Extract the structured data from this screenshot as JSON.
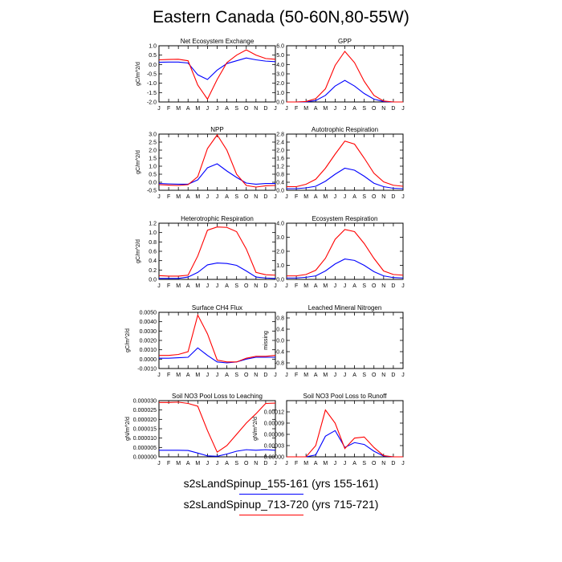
{
  "title": "Eastern Canada (50-60N,80-55W)",
  "colors": {
    "series_a": "#0000ff",
    "series_b": "#ff0000"
  },
  "legend": [
    {
      "label": "s2sLandSpinup_155-161 (yrs 155-161)",
      "color": "#0000ff"
    },
    {
      "label": "s2sLandSpinup_713-720 (yrs 715-721)",
      "color": "#ff0000"
    }
  ],
  "chart_data": [
    {
      "type": "line",
      "title": "Net Ecosystem Exchange",
      "ylabel": "gC/m^2/d",
      "ylim": [
        -2.0,
        1.0
      ],
      "yticks": [
        "-2.0",
        "-1.5",
        "-1.0",
        "-0.5",
        "0.0",
        "0.5",
        "1.0"
      ],
      "categories": [
        "J",
        "F",
        "M",
        "A",
        "M",
        "J",
        "J",
        "A",
        "S",
        "O",
        "N",
        "D",
        "J"
      ],
      "series": [
        {
          "values": [
            0.12,
            0.13,
            0.13,
            0.08,
            -0.55,
            -0.8,
            -0.3,
            0.05,
            0.2,
            0.35,
            0.25,
            0.18,
            0.15
          ]
        },
        {
          "values": [
            0.25,
            0.27,
            0.28,
            0.2,
            -1.1,
            -1.85,
            -0.8,
            0.1,
            0.5,
            0.78,
            0.5,
            0.32,
            0.28
          ]
        }
      ]
    },
    {
      "type": "line",
      "title": "GPP",
      "ylabel": "",
      "ylim": [
        0.0,
        6.0
      ],
      "yticks": [
        "0.0",
        "1.0",
        "2.0",
        "3.0",
        "4.0",
        "5.0",
        "6.0"
      ],
      "categories": [
        "J",
        "F",
        "M",
        "A",
        "M",
        "J",
        "J",
        "A",
        "S",
        "O",
        "N",
        "D",
        "J"
      ],
      "series": [
        {
          "values": [
            0.0,
            0.0,
            0.02,
            0.15,
            0.7,
            1.7,
            2.3,
            1.7,
            0.9,
            0.3,
            0.05,
            0.0,
            0.0
          ]
        },
        {
          "values": [
            0.0,
            0.0,
            0.05,
            0.35,
            1.4,
            3.9,
            5.4,
            4.2,
            2.2,
            0.7,
            0.1,
            0.0,
            0.0
          ]
        }
      ]
    },
    {
      "type": "line",
      "title": "NPP",
      "ylabel": "gC/m^2/d",
      "ylim": [
        -0.5,
        3.0
      ],
      "yticks": [
        "-0.5",
        "0.0",
        "0.5",
        "1.0",
        "1.5",
        "2.0",
        "2.5",
        "3.0"
      ],
      "categories": [
        "J",
        "F",
        "M",
        "A",
        "M",
        "J",
        "J",
        "A",
        "S",
        "O",
        "N",
        "D",
        "J"
      ],
      "series": [
        {
          "values": [
            -0.08,
            -0.1,
            -0.12,
            -0.12,
            0.15,
            0.9,
            1.15,
            0.7,
            0.3,
            -0.05,
            -0.12,
            -0.08,
            -0.08
          ]
        },
        {
          "values": [
            -0.15,
            -0.18,
            -0.2,
            -0.15,
            0.35,
            2.1,
            2.95,
            2.0,
            0.5,
            -0.2,
            -0.3,
            -0.22,
            -0.2
          ]
        }
      ]
    },
    {
      "type": "line",
      "title": "Autotrophic Respiration",
      "ylabel": "",
      "ylim": [
        0.0,
        2.8
      ],
      "yticks": [
        "0.0",
        "0.4",
        "0.8",
        "1.2",
        "1.6",
        "2.0",
        "2.4",
        "2.8"
      ],
      "categories": [
        "J",
        "F",
        "M",
        "A",
        "M",
        "J",
        "J",
        "A",
        "S",
        "O",
        "N",
        "D",
        "J"
      ],
      "series": [
        {
          "values": [
            0.08,
            0.08,
            0.12,
            0.2,
            0.45,
            0.8,
            1.1,
            1.0,
            0.7,
            0.35,
            0.18,
            0.1,
            0.08
          ]
        },
        {
          "values": [
            0.18,
            0.18,
            0.3,
            0.55,
            1.1,
            1.8,
            2.45,
            2.3,
            1.6,
            0.85,
            0.42,
            0.25,
            0.2
          ]
        }
      ]
    },
    {
      "type": "line",
      "title": "Heterotrophic Respiration",
      "ylabel": "gC/m^2/d",
      "ylim": [
        0.0,
        1.2
      ],
      "yticks": [
        "0.0",
        "0.2",
        "0.4",
        "0.6",
        "0.8",
        "1.0",
        "1.2"
      ],
      "categories": [
        "J",
        "F",
        "M",
        "A",
        "M",
        "J",
        "J",
        "A",
        "S",
        "O",
        "N",
        "D",
        "J"
      ],
      "series": [
        {
          "values": [
            0.02,
            0.02,
            0.02,
            0.05,
            0.15,
            0.31,
            0.35,
            0.34,
            0.3,
            0.18,
            0.05,
            0.03,
            0.02
          ]
        },
        {
          "values": [
            0.08,
            0.07,
            0.07,
            0.09,
            0.5,
            1.05,
            1.12,
            1.11,
            1.02,
            0.65,
            0.15,
            0.1,
            0.09
          ]
        }
      ]
    },
    {
      "type": "line",
      "title": "Ecosystem Respiration",
      "ylabel": "",
      "ylim": [
        0.0,
        4.0
      ],
      "yticks": [
        "0.0",
        "1.0",
        "2.0",
        "3.0",
        "4.0"
      ],
      "categories": [
        "J",
        "F",
        "M",
        "A",
        "M",
        "J",
        "J",
        "A",
        "S",
        "O",
        "N",
        "D",
        "J"
      ],
      "series": [
        {
          "values": [
            0.1,
            0.1,
            0.15,
            0.25,
            0.6,
            1.1,
            1.45,
            1.35,
            1.0,
            0.55,
            0.25,
            0.13,
            0.1
          ]
        },
        {
          "values": [
            0.25,
            0.25,
            0.35,
            0.65,
            1.5,
            2.85,
            3.55,
            3.4,
            2.55,
            1.5,
            0.6,
            0.35,
            0.3
          ]
        }
      ]
    },
    {
      "type": "line",
      "title": "Surface CH4 Flux",
      "ylabel": "gC/m^2/d",
      "ylim": [
        -0.001,
        0.005
      ],
      "yticks": [
        "-0.0010",
        "0.0000",
        "0.0010",
        "0.0020",
        "0.0030",
        "0.0040",
        "0.0050"
      ],
      "categories": [
        "J",
        "F",
        "M",
        "A",
        "M",
        "J",
        "J",
        "A",
        "S",
        "O",
        "N",
        "D",
        "J"
      ],
      "series": [
        {
          "values": [
            0.0001,
            0.0001,
            0.00015,
            0.0002,
            0.0012,
            0.0004,
            -0.0003,
            -0.0004,
            -0.0003,
            0.0,
            0.0002,
            0.0002,
            0.0002
          ]
        },
        {
          "values": [
            0.0004,
            0.0004,
            0.0005,
            0.0008,
            0.0047,
            0.0027,
            -0.0001,
            -0.0003,
            -0.0003,
            0.0001,
            0.0003,
            0.0003,
            0.0004
          ]
        }
      ]
    },
    {
      "type": "line",
      "title": "Leached Mineral Nitrogen",
      "ylabel": "missing",
      "ylim": [
        -1.0,
        1.0
      ],
      "yticks": [
        "-0.8",
        "-0.4",
        "0.0",
        "0.4",
        "0.8"
      ],
      "categories": [
        "J",
        "F",
        "M",
        "A",
        "M",
        "J",
        "J",
        "A",
        "S",
        "O",
        "N",
        "D",
        "J"
      ],
      "series": []
    },
    {
      "type": "line",
      "title": "Soil NO3 Pool Loss to Leaching",
      "ylabel": "gN/m^2/d",
      "ylim": [
        0.0,
        3e-05
      ],
      "yticks": [
        "0.000000",
        "0.000005",
        "0.000010",
        "0.000015",
        "0.000020",
        "0.000025",
        "0.000030"
      ],
      "categories": [
        "J",
        "F",
        "M",
        "A",
        "M",
        "J",
        "J",
        "A",
        "S",
        "O",
        "N",
        "D",
        "J"
      ],
      "series": [
        {
          "values": [
            3.5e-06,
            3.5e-06,
            3.5e-06,
            3.4e-06,
            2e-06,
            5e-07,
            3e-07,
            1.5e-06,
            3e-06,
            3.8e-06,
            3.5e-06,
            3.8e-06,
            3.5e-06
          ]
        },
        {
          "values": [
            2.9e-05,
            2.9e-05,
            2.92e-05,
            2.85e-05,
            2.7e-05,
            1.4e-05,
            2.5e-06,
            6e-06,
            1.2e-05,
            1.8e-05,
            2.3e-05,
            2.85e-05,
            2.87e-05
          ]
        }
      ]
    },
    {
      "type": "line",
      "title": "Soil NO3 Pool Loss to Runoff",
      "ylabel": "gN/m^2/d",
      "ylim": [
        0.0,
        0.00015
      ],
      "yticks": [
        "0.00000",
        "0.00003",
        "0.00006",
        "0.00009",
        "0.00012"
      ],
      "categories": [
        "J",
        "F",
        "M",
        "A",
        "M",
        "J",
        "J",
        "A",
        "S",
        "O",
        "N",
        "D",
        "J"
      ],
      "series": [
        {
          "values": [
            0.0,
            0.0,
            0.0,
            5e-06,
            5.5e-05,
            7e-05,
            2.5e-05,
            3.8e-05,
            3.3e-05,
            1.5e-05,
            2e-06,
            0.0,
            0.0
          ]
        },
        {
          "values": [
            0.0,
            0.0,
            0.0,
            3e-05,
            0.000125,
            9e-05,
            2.2e-05,
            5e-05,
            5.3e-05,
            2.5e-05,
            3e-06,
            0.0,
            0.0
          ]
        }
      ]
    }
  ]
}
